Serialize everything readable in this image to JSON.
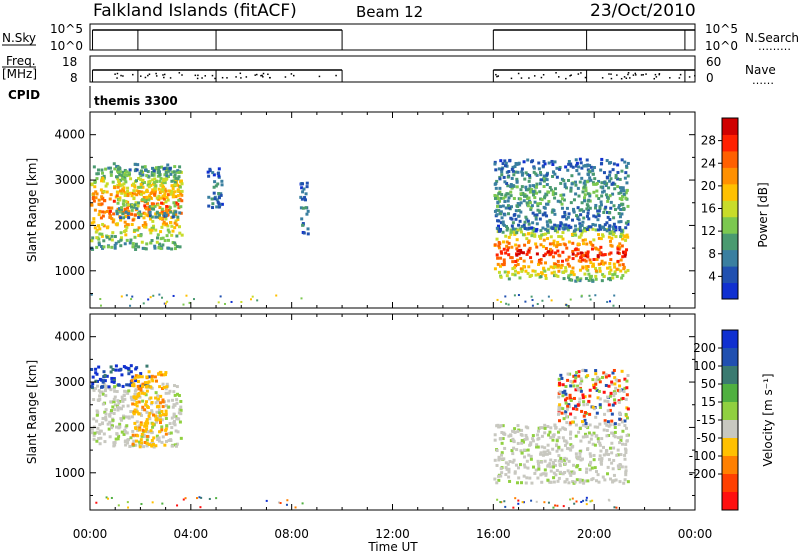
{
  "header": {
    "station": "Falkland Islands (fitACF)",
    "beam": "Beam 12",
    "date": "23/Oct/2010"
  },
  "side_labels": {
    "nsky": "N.Sky",
    "nsearch": "N.Search",
    "nsearch_dots": "………",
    "freq": "Freq.",
    "mhz": "[MHz]",
    "nave": "Nave",
    "nave_dots": "……",
    "cpid": "CPID",
    "cpid_value": "themis 3300"
  },
  "strips": {
    "nsky_ticks": [
      "10^5",
      "10^0"
    ],
    "nsearch_ticks": [
      "10^5",
      "10^0"
    ],
    "freq_ticks": [
      "18",
      "8"
    ],
    "nave_ticks": [
      "60",
      "0"
    ]
  },
  "chart_data": [
    {
      "type": "heatmap",
      "name": "power",
      "ylabel": "Slant Range [km]",
      "ylim": [
        180,
        4500
      ],
      "yticks": [
        1000,
        2000,
        3000,
        4000
      ],
      "xlim": [
        0,
        24
      ],
      "colorbar": {
        "label": "Power [dB]",
        "range": [
          0,
          32
        ],
        "ticks": [
          "28",
          "24",
          "20",
          "16",
          "12",
          "8",
          "4"
        ],
        "tick_values": [
          28,
          24,
          20,
          16,
          12,
          8,
          4
        ],
        "colors": [
          "#1030d0",
          "#2050b0",
          "#3a7fa0",
          "#4a9a70",
          "#7cc850",
          "#c8dc2a",
          "#ffc000",
          "#ff9000",
          "#ff6000",
          "#ff2000",
          "#d00000"
        ]
      },
      "echo_regions": [
        {
          "t": [
            0.0,
            3.6
          ],
          "r": [
            1500,
            3400
          ],
          "level": 0.75
        },
        {
          "t": [
            1.0,
            3.6
          ],
          "r": [
            2200,
            3300
          ],
          "level": 0.55
        },
        {
          "t": [
            4.6,
            5.2
          ],
          "r": [
            2400,
            3300
          ],
          "level": 0.25
        },
        {
          "t": [
            8.3,
            8.6
          ],
          "r": [
            1700,
            3000
          ],
          "level": 0.2
        },
        {
          "t": [
            16.0,
            21.3
          ],
          "r": [
            800,
            2000
          ],
          "level": 0.85
        },
        {
          "t": [
            16.0,
            21.3
          ],
          "r": [
            1900,
            3500
          ],
          "level": 0.3
        }
      ]
    },
    {
      "type": "heatmap",
      "name": "velocity",
      "ylabel": "Slant Range [km]",
      "xlabel": "Time UT",
      "ylim": [
        180,
        4500
      ],
      "yticks": [
        1000,
        2000,
        3000,
        4000
      ],
      "xlim": [
        0,
        24
      ],
      "xticks": [
        "00:00",
        "04:00",
        "08:00",
        "12:00",
        "16:00",
        "20:00",
        "00:00"
      ],
      "colorbar": {
        "label": "Velocity [m s⁻¹]",
        "range": [
          -250,
          250
        ],
        "ticks": [
          "200",
          "100",
          "50",
          "15",
          "-15",
          "-50",
          "-100",
          "-200"
        ],
        "colors": [
          "#1030d0",
          "#2050b0",
          "#3a7a70",
          "#50b040",
          "#90d040",
          "#c8c8c0",
          "#ffc000",
          "#ff8000",
          "#ff4000",
          "#ff1010"
        ]
      },
      "echo_regions": [
        {
          "t": [
            0.0,
            3.6
          ],
          "r": [
            1600,
            3000
          ],
          "category": "ground scatter"
        },
        {
          "t": [
            0.0,
            2.3
          ],
          "r": [
            2900,
            3400
          ],
          "category": "positive"
        },
        {
          "t": [
            1.6,
            3.0
          ],
          "r": [
            1600,
            3300
          ],
          "category": "negative"
        },
        {
          "t": [
            16.0,
            21.3
          ],
          "r": [
            800,
            2100
          ],
          "category": "ground scatter"
        },
        {
          "t": [
            18.5,
            21.3
          ],
          "r": [
            2100,
            3300
          ],
          "category": "mixed"
        }
      ]
    }
  ]
}
